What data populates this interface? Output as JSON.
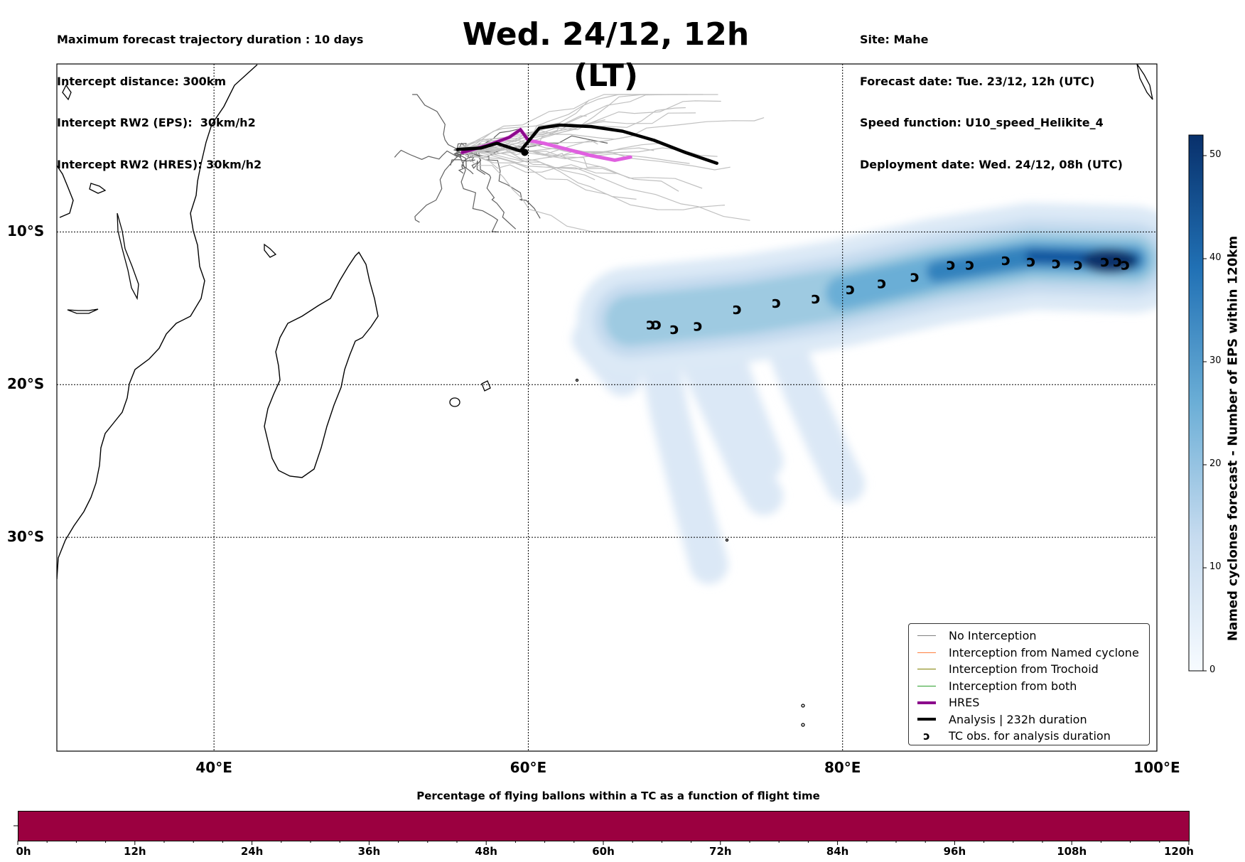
{
  "header_left": [
    "Maximum forecast trajectory duration : 10 days",
    "Intercept distance: 300km",
    "Intercept RW2 (EPS):  30km/h2",
    "Intercept RW2 (HRES): 30km/h2"
  ],
  "header_right": [
    "Site: Mahe",
    "Forecast date: Tue. 23/12, 12h (UTC)",
    "Speed function: U10_speed_Helikite_4",
    "Deployment date: Wed. 24/12, 08h (UTC)"
  ],
  "title": "Wed. 24/12, 12h (LT)",
  "map": {
    "lon_range": [
      30,
      100
    ],
    "lat_range": [
      -44,
      1
    ],
    "lon_ticks": [
      {
        "value": 40,
        "label": "40°E"
      },
      {
        "value": 60,
        "label": "60°E"
      },
      {
        "value": 80,
        "label": "80°E"
      },
      {
        "value": 100,
        "label": "100°E"
      }
    ],
    "lat_ticks": [
      {
        "value": -10,
        "label": "10°S"
      },
      {
        "value": -20,
        "label": "20°S"
      },
      {
        "value": -30,
        "label": "30°S"
      }
    ],
    "analysis_track": [
      [
        55.5,
        -4.6
      ],
      [
        57,
        -4.5
      ],
      [
        58,
        -4.2
      ],
      [
        59.5,
        -4.7
      ],
      [
        60.7,
        -3.2
      ],
      [
        62,
        -3.0
      ],
      [
        64,
        -3.1
      ],
      [
        66,
        -3.4
      ],
      [
        68,
        -4.0
      ],
      [
        70,
        -4.8
      ],
      [
        72,
        -5.5
      ]
    ],
    "hres_track": [
      [
        55.8,
        -4.8
      ],
      [
        57.5,
        -4.3
      ],
      [
        58.8,
        -3.8
      ],
      [
        59.5,
        -3.3
      ],
      [
        60,
        -4.0
      ],
      [
        61,
        -4.2
      ],
      [
        62.5,
        -4.6
      ],
      [
        64,
        -5.0
      ],
      [
        65.5,
        -5.3
      ],
      [
        66.5,
        -5.1
      ]
    ],
    "tc_obs": [
      [
        67.8,
        -16.0
      ],
      [
        68.2,
        -16.0
      ],
      [
        69.3,
        -16.3
      ],
      [
        70.8,
        -16.1
      ],
      [
        73.3,
        -15.0
      ],
      [
        75.8,
        -14.6
      ],
      [
        78.3,
        -14.3
      ],
      [
        80.5,
        -13.7
      ],
      [
        82.5,
        -13.3
      ],
      [
        84.6,
        -12.9
      ],
      [
        86.9,
        -12.1
      ],
      [
        88.1,
        -12.1
      ],
      [
        90.4,
        -11.8
      ],
      [
        92,
        -11.9
      ],
      [
        93.6,
        -12.0
      ],
      [
        95,
        -12.1
      ],
      [
        96.7,
        -11.9
      ],
      [
        97.5,
        -11.9
      ],
      [
        98,
        -12.1
      ]
    ],
    "density_core": [
      [
        66.5,
        -15.8
      ],
      [
        74,
        -15.0
      ],
      [
        80,
        -14.0
      ],
      [
        86,
        -12.6
      ],
      [
        92,
        -11.6
      ],
      [
        98.5,
        -11.8
      ]
    ],
    "density_plumes": [
      [
        [
          68,
          -16.5
        ],
        [
          69,
          -22
        ],
        [
          70.5,
          -28
        ],
        [
          71.5,
          -31.8
        ]
      ],
      [
        [
          70,
          -16.5
        ],
        [
          72,
          -21
        ],
        [
          74,
          -25.5
        ],
        [
          75,
          -27.3
        ]
      ],
      [
        [
          72,
          -16.5
        ],
        [
          73.5,
          -21
        ],
        [
          75,
          -25
        ]
      ],
      [
        [
          76,
          -16.5
        ],
        [
          77.5,
          -20.5
        ],
        [
          79,
          -24
        ],
        [
          80.2,
          -26.5
        ]
      ],
      [
        [
          64,
          -17
        ],
        [
          66,
          -19.5
        ]
      ]
    ],
    "colorbar": {
      "label": "Named cyclones forecast - Number of EPS within 120km",
      "min": 0,
      "max": 52,
      "ticks": [
        "0",
        "10",
        "20",
        "30",
        "40",
        "50"
      ]
    }
  },
  "legend": [
    {
      "label": "No Interception",
      "color": "#808080",
      "kind": "line-thin"
    },
    {
      "label": "Interception from Named cyclone",
      "color": "#ff7f3f",
      "kind": "line-thin"
    },
    {
      "label": "Interception from Trochoid",
      "color": "#808000",
      "kind": "line-thin"
    },
    {
      "label": "Interception from both",
      "color": "#2ca02c",
      "kind": "line-thin"
    },
    {
      "label": "HRES",
      "color": "#8b0a8b",
      "kind": "line-thick"
    },
    {
      "label": "Analysis | 232h duration",
      "color": "#000000",
      "kind": "line-thick"
    },
    {
      "label": "TC obs. for analysis duration",
      "color": "#000000",
      "kind": "marker"
    }
  ],
  "tc_symbol": "ↄ",
  "bottom": {
    "title": "Percentage of flying ballons within a TC as a function of flight time",
    "bar_color": "#9b0040",
    "ticks": [
      "0h",
      "12h",
      "24h",
      "36h",
      "48h",
      "60h",
      "72h",
      "84h",
      "96h",
      "108h",
      "120h"
    ]
  }
}
